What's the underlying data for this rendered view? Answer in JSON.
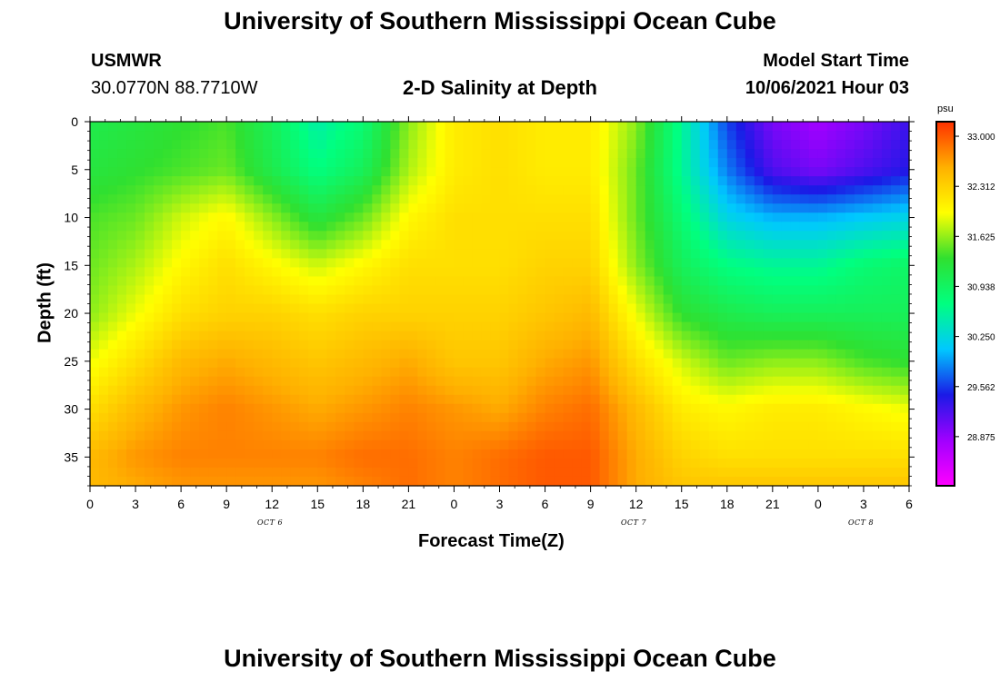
{
  "page": {
    "title_top": "University of Southern Mississippi Ocean Cube",
    "title_bottom": "University of Southern Mississippi Ocean Cube",
    "station": "USMWR",
    "coords": "30.0770N  88.7710W",
    "model_label": "Model Start Time",
    "model_time": "10/06/2021 Hour 03"
  },
  "colors": {
    "scale": [
      "#ff00ff",
      "#a000ff",
      "#1a1ae6",
      "#00c8ff",
      "#00ff80",
      "#30e030",
      "#ffff00",
      "#ffb000",
      "#ff3000"
    ]
  },
  "chart_data": {
    "type": "heatmap",
    "title": "2-D Salinity at Depth",
    "xlabel": "Forecast Time(Z)",
    "ylabel": "Depth (ft)",
    "x_ticks": [
      "0",
      "3",
      "6",
      "9",
      "12",
      "15",
      "18",
      "21",
      "0",
      "3",
      "6",
      "9",
      "12",
      "15",
      "18",
      "21",
      "0",
      "3",
      "6"
    ],
    "day_labels": [
      "OCT 6",
      "OCT 7",
      "OCT 8"
    ],
    "x_range_hours": [
      0,
      54
    ],
    "ylim": [
      38,
      0
    ],
    "y_ticks": [
      "0",
      "5",
      "10",
      "15",
      "20",
      "25",
      "30",
      "35"
    ],
    "y_tick_values": [
      0,
      5,
      10,
      15,
      20,
      25,
      30,
      35
    ],
    "colorbar": {
      "unit": "psu",
      "range": [
        28.2,
        33.2
      ],
      "tick_labels": [
        "33.000",
        "32.312",
        "31.625",
        "30.938",
        "30.250",
        "29.562",
        "28.875"
      ],
      "tick_values": [
        33.0,
        32.312,
        31.625,
        30.938,
        30.25,
        29.562,
        28.875
      ]
    },
    "field_description": "salinity (psu) estimated from colors on a time x depth grid",
    "depth_values": [
      0,
      5,
      10,
      15,
      20,
      25,
      30,
      35,
      38
    ],
    "time_values": [
      0,
      3,
      6,
      9,
      12,
      15,
      18,
      21,
      24,
      27,
      30,
      33,
      36,
      39,
      42,
      45,
      48,
      51,
      54
    ],
    "salinity": [
      [
        31.1,
        31.2,
        31.3,
        31.4,
        31.0,
        30.5,
        30.8,
        31.6,
        32.1,
        32.2,
        32.1,
        32.1,
        31.6,
        30.6,
        29.6,
        29.0,
        28.8,
        29.0,
        29.3
      ],
      [
        31.2,
        31.3,
        31.4,
        31.5,
        31.1,
        30.7,
        31.0,
        31.7,
        32.1,
        32.2,
        32.1,
        32.1,
        31.5,
        30.6,
        29.8,
        29.2,
        29.0,
        29.2,
        29.4
      ],
      [
        31.4,
        31.5,
        31.8,
        32.0,
        31.6,
        31.2,
        31.5,
        32.0,
        32.2,
        32.2,
        32.2,
        32.2,
        31.5,
        30.8,
        30.2,
        30.0,
        30.0,
        30.1,
        30.2
      ],
      [
        31.5,
        31.7,
        32.0,
        32.2,
        32.0,
        31.8,
        32.0,
        32.2,
        32.2,
        32.2,
        32.3,
        32.3,
        31.6,
        31.0,
        30.7,
        30.6,
        30.6,
        30.8,
        30.9
      ],
      [
        31.6,
        31.9,
        32.2,
        32.3,
        32.3,
        32.2,
        32.3,
        32.3,
        32.3,
        32.3,
        32.4,
        32.5,
        31.9,
        31.3,
        31.1,
        31.0,
        31.0,
        31.0,
        31.0
      ],
      [
        31.9,
        32.2,
        32.5,
        32.6,
        32.5,
        32.4,
        32.5,
        32.6,
        32.4,
        32.4,
        32.6,
        32.7,
        32.2,
        31.8,
        31.5,
        31.6,
        31.6,
        31.4,
        31.3
      ],
      [
        32.2,
        32.5,
        32.7,
        32.8,
        32.7,
        32.6,
        32.7,
        32.8,
        32.7,
        32.6,
        32.8,
        32.9,
        32.5,
        32.1,
        32.0,
        32.1,
        32.1,
        32.0,
        31.9
      ],
      [
        32.5,
        32.7,
        32.8,
        32.8,
        32.8,
        32.8,
        32.9,
        32.9,
        32.8,
        32.9,
        33.0,
        33.0,
        32.6,
        32.3,
        32.2,
        32.2,
        32.2,
        32.2,
        32.2
      ],
      [
        32.5,
        32.6,
        32.7,
        32.7,
        32.7,
        32.7,
        32.8,
        32.9,
        32.8,
        32.9,
        33.0,
        33.0,
        32.6,
        32.4,
        32.4,
        32.4,
        32.4,
        32.4,
        32.4
      ]
    ]
  }
}
